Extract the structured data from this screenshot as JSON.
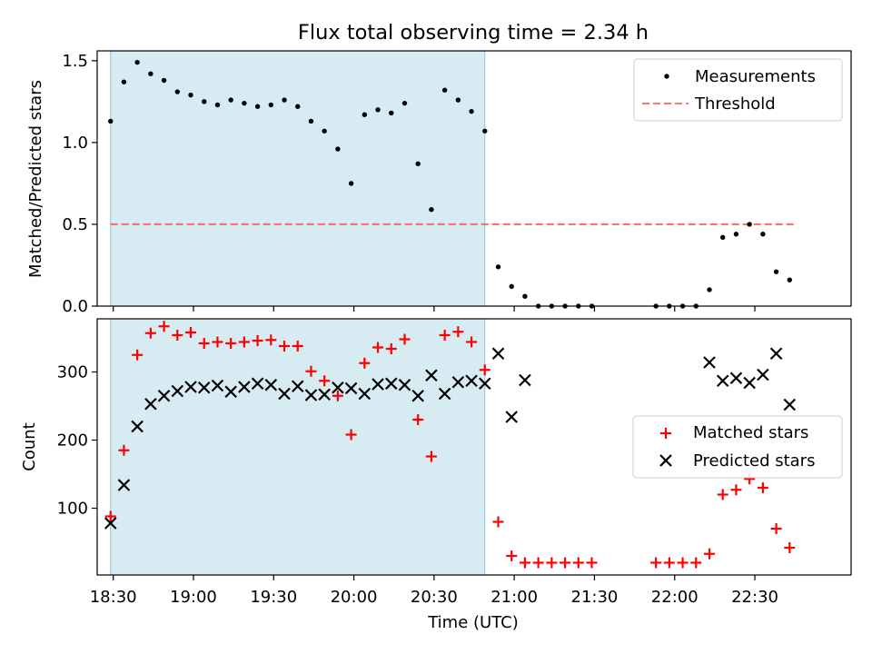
{
  "figure": {
    "title": "Flux total observing time = 2.34 h",
    "xlabel": "Time (UTC)",
    "x_ticks": [
      "18:30",
      "19:00",
      "19:30",
      "20:00",
      "20:30",
      "21:00",
      "21:30",
      "22:00",
      "22:30"
    ]
  },
  "chart_data": [
    {
      "type": "scatter",
      "ylabel": "Matched/Predicted stars",
      "xlim": [
        "18:24",
        "23:06"
      ],
      "ylim": [
        0,
        1.56
      ],
      "y_ticks": [
        "0.0",
        "0.5",
        "1.0",
        "1.5"
      ],
      "shaded_region": {
        "from": "18:29",
        "to": "20:49",
        "color": "#add8e6"
      },
      "threshold": {
        "name": "Threshold",
        "value": 0.5,
        "from": "18:29",
        "to": "22:45",
        "color": "#ff6666",
        "style": "dashed"
      },
      "legend": {
        "placement": "top-right",
        "entries": [
          "Measurements",
          "Threshold"
        ]
      },
      "series": [
        {
          "name": "Measurements",
          "marker": "dot",
          "color": "#000000",
          "x": [
            "18:29",
            "18:34",
            "18:39",
            "18:44",
            "18:49",
            "18:54",
            "18:59",
            "19:04",
            "19:09",
            "19:14",
            "19:19",
            "19:24",
            "19:29",
            "19:34",
            "19:39",
            "19:44",
            "19:49",
            "19:54",
            "19:59",
            "20:04",
            "20:09",
            "20:14",
            "20:19",
            "20:24",
            "20:29",
            "20:34",
            "20:39",
            "20:44",
            "20:49",
            "20:54",
            "20:59",
            "21:04",
            "21:09",
            "21:14",
            "21:19",
            "21:24",
            "21:29",
            "21:53",
            "21:58",
            "22:03",
            "22:08",
            "22:13",
            "22:18",
            "22:23",
            "22:28",
            "22:33",
            "22:38",
            "22:43"
          ],
          "y": [
            1.13,
            1.37,
            1.49,
            1.42,
            1.38,
            1.31,
            1.29,
            1.25,
            1.23,
            1.26,
            1.24,
            1.22,
            1.23,
            1.26,
            1.22,
            1.13,
            1.07,
            0.96,
            0.75,
            1.17,
            1.2,
            1.18,
            1.24,
            0.87,
            0.59,
            1.32,
            1.26,
            1.19,
            1.07,
            0.24,
            0.12,
            0.06,
            0,
            0,
            0,
            0,
            0,
            0,
            0,
            0,
            0,
            0.1,
            0.42,
            0.44,
            0.5,
            0.44,
            0.21,
            0.16
          ]
        }
      ]
    },
    {
      "type": "scatter",
      "ylabel": "Count",
      "xlim": [
        "18:24",
        "23:06"
      ],
      "ylim": [
        2,
        378
      ],
      "y_ticks": [
        "100",
        "200",
        "300"
      ],
      "shaded_region": {
        "from": "18:29",
        "to": "20:49",
        "color": "#add8e6"
      },
      "legend": {
        "placement": "center-right",
        "entries": [
          "Matched stars",
          "Predicted stars"
        ]
      },
      "series": [
        {
          "name": "Matched stars",
          "marker": "plus",
          "color": "#ff0000",
          "x": [
            "18:29",
            "18:34",
            "18:39",
            "18:44",
            "18:49",
            "18:54",
            "18:59",
            "19:04",
            "19:09",
            "19:14",
            "19:19",
            "19:24",
            "19:29",
            "19:34",
            "19:39",
            "19:44",
            "19:49",
            "19:54",
            "19:59",
            "20:04",
            "20:09",
            "20:14",
            "20:19",
            "20:24",
            "20:29",
            "20:34",
            "20:39",
            "20:44",
            "20:49",
            "20:54",
            "20:59",
            "21:04",
            "21:09",
            "21:14",
            "21:19",
            "21:24",
            "21:29",
            "21:53",
            "21:58",
            "22:03",
            "22:08",
            "22:13",
            "22:18",
            "22:23",
            "22:28",
            "22:33",
            "22:38",
            "22:43"
          ],
          "y": [
            88,
            185,
            325,
            357,
            367,
            354,
            358,
            342,
            344,
            342,
            344,
            346,
            347,
            338,
            338,
            301,
            287,
            265,
            208,
            313,
            336,
            334,
            348,
            230,
            176,
            354,
            359,
            344,
            303,
            80,
            30,
            20,
            20,
            20,
            20,
            20,
            20,
            20,
            20,
            20,
            20,
            33,
            120,
            127,
            143,
            130,
            70,
            42
          ]
        },
        {
          "name": "Predicted stars",
          "marker": "x",
          "color": "#000000",
          "x": [
            "18:29",
            "18:34",
            "18:39",
            "18:44",
            "18:49",
            "18:54",
            "18:59",
            "19:04",
            "19:09",
            "19:14",
            "19:19",
            "19:24",
            "19:29",
            "19:34",
            "19:39",
            "19:44",
            "19:49",
            "19:54",
            "19:59",
            "20:04",
            "20:09",
            "20:14",
            "20:19",
            "20:24",
            "20:29",
            "20:34",
            "20:39",
            "20:44",
            "20:49",
            "20:54",
            "20:59",
            "21:04",
            "22:13",
            "22:18",
            "22:23",
            "22:28",
            "22:33",
            "22:38",
            "22:43"
          ],
          "y": [
            78,
            134,
            220,
            253,
            265,
            272,
            278,
            277,
            280,
            271,
            278,
            283,
            281,
            268,
            279,
            266,
            267,
            277,
            276,
            268,
            282,
            283,
            281,
            265,
            295,
            268,
            285,
            287,
            283,
            327,
            234,
            288,
            314,
            287,
            291,
            284,
            296,
            327,
            252
          ]
        }
      ]
    }
  ]
}
